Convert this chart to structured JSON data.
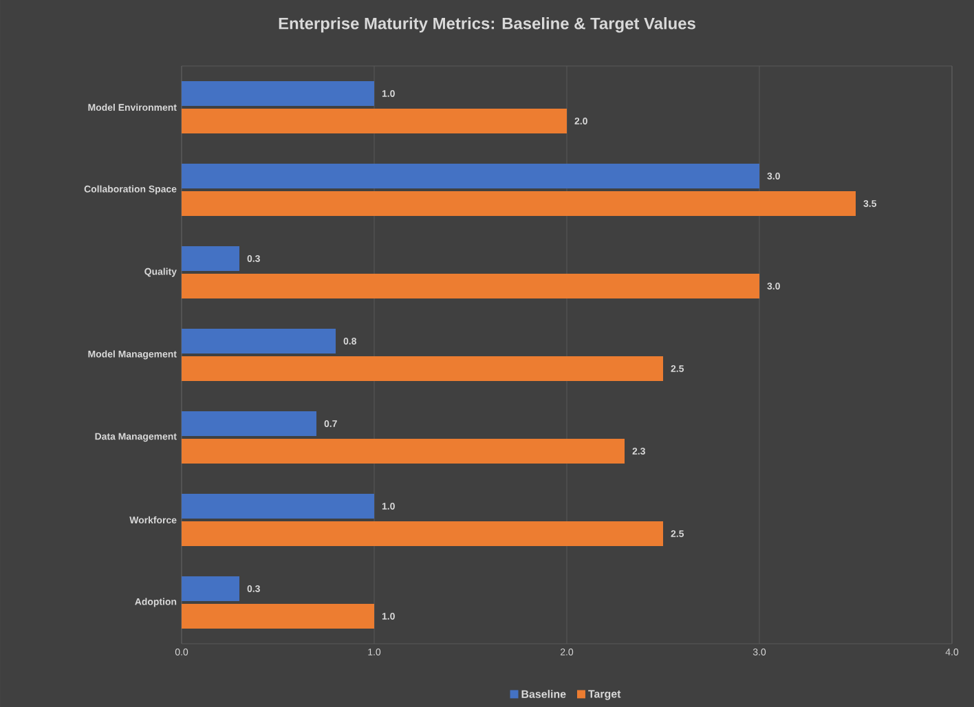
{
  "chart_data": {
    "type": "bar",
    "orientation": "horizontal",
    "title": "Enterprise Maturity Metrics: Baseline & Target Values",
    "categories": [
      "Model Environment",
      "Collaboration Space",
      "Quality",
      "Model Management",
      "Data Management",
      "Workforce",
      "Adoption"
    ],
    "series": [
      {
        "name": "Baseline",
        "color": "#4472c4",
        "values": [
          1.0,
          3.0,
          0.3,
          0.8,
          0.7,
          1.0,
          0.3
        ],
        "value_labels": [
          "1.0",
          "3.0",
          "0.3",
          "0.8",
          "0.7",
          "1.0",
          "0.3"
        ]
      },
      {
        "name": "Target",
        "color": "#ed7d31",
        "values": [
          2.0,
          3.5,
          3.0,
          2.5,
          2.3,
          2.5,
          1.0
        ],
        "value_labels": [
          "2.0",
          "3.5",
          "3.0",
          "2.5",
          "2.3",
          "2.5",
          "1.0"
        ]
      }
    ],
    "xlim": [
      0,
      4
    ],
    "xticks": [
      {
        "value": 0,
        "label": "0.0"
      },
      {
        "value": 1,
        "label": "1.0"
      },
      {
        "value": 2,
        "label": "2.0"
      },
      {
        "value": 3,
        "label": "3.0"
      },
      {
        "value": 4,
        "label": "4.0"
      }
    ],
    "grid": "x",
    "legend": "bottom"
  }
}
